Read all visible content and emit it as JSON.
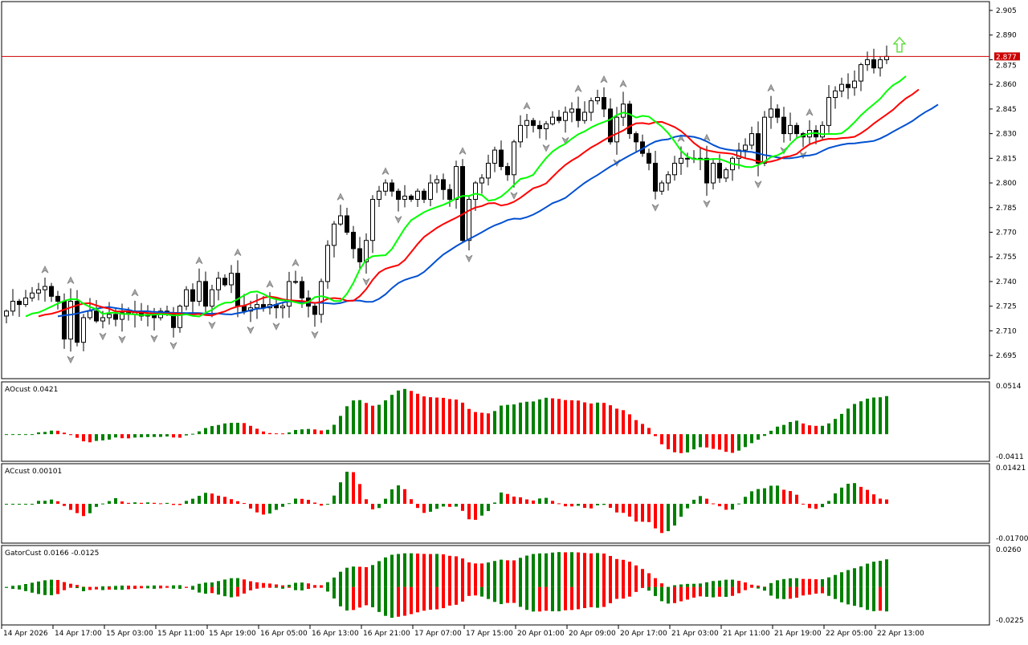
{
  "chart": {
    "bid_line_price": "2.877",
    "colors": {
      "bull_bar": "#008000",
      "bear_bar": "#ff0000",
      "lips": "#00ff00",
      "teeth": "#ff0000",
      "jaw": "#0050d0",
      "bid_line": "#cc0000",
      "buy_arrow": "#66dd44"
    },
    "price_ticks": [
      "2.905",
      "2.890",
      "2.875",
      "2.860",
      "2.845",
      "2.830",
      "2.815",
      "2.800",
      "2.785",
      "2.770",
      "2.755",
      "2.740",
      "2.725",
      "2.710",
      "2.695"
    ],
    "time_labels": [
      "14 Apr 2026",
      "14 Apr 17:00",
      "15 Apr 03:00",
      "15 Apr 11:00",
      "15 Apr 19:00",
      "16 Apr 05:00",
      "16 Apr 13:00",
      "16 Apr 21:00",
      "17 Apr 07:00",
      "17 Apr 15:00",
      "20 Apr 01:00",
      "20 Apr 09:00",
      "20 Apr 17:00",
      "21 Apr 03:00",
      "21 Apr 11:00",
      "21 Apr 19:00",
      "22 Apr 05:00",
      "22 Apr 13:00"
    ]
  },
  "indicators": {
    "ao": {
      "label": "AOcust 0.0421",
      "max": "0.0514",
      "min": "-0.0411"
    },
    "ac": {
      "label": "ACcust 0.00101",
      "max": "0.01421",
      "min": "-0.01700"
    },
    "gator": {
      "label": "GatorCust 0.0166 -0.0125",
      "max": "0.0260",
      "min": "-0.0225"
    }
  },
  "chart_data": {
    "type": "candlestick",
    "closes": [
      2.722,
      2.728,
      2.726,
      2.73,
      2.733,
      2.735,
      2.737,
      2.731,
      2.728,
      2.705,
      2.728,
      2.703,
      2.718,
      2.722,
      2.716,
      2.718,
      2.72,
      2.717,
      2.721,
      2.72,
      2.722,
      2.719,
      2.72,
      2.718,
      2.722,
      2.72,
      2.712,
      2.725,
      2.735,
      2.728,
      2.74,
      2.725,
      2.735,
      2.742,
      2.738,
      2.745,
      2.725,
      2.722,
      2.724,
      2.726,
      2.724,
      2.726,
      2.724,
      2.725,
      2.74,
      2.74,
      2.73,
      2.725,
      2.72,
      2.74,
      2.762,
      2.775,
      2.78,
      2.77,
      2.76,
      2.752,
      2.765,
      2.79,
      2.795,
      2.8,
      2.795,
      2.79,
      2.792,
      2.79,
      2.795,
      2.79,
      2.8,
      2.802,
      2.796,
      2.79,
      2.81,
      2.765,
      2.79,
      2.8,
      2.803,
      2.812,
      2.82,
      2.81,
      2.805,
      2.825,
      2.835,
      2.838,
      2.835,
      2.833,
      2.836,
      2.84,
      2.838,
      2.843,
      2.845,
      2.838,
      2.843,
      2.85,
      2.852,
      2.845,
      2.825,
      2.84,
      2.848,
      2.83,
      2.825,
      2.818,
      2.812,
      2.795,
      2.8,
      2.805,
      2.812,
      2.815,
      2.815,
      2.815,
      2.815,
      2.8,
      2.812,
      2.803,
      2.808,
      2.815,
      2.82,
      2.823,
      2.83,
      2.812,
      2.84,
      2.845,
      2.84,
      2.83,
      2.835,
      2.83,
      2.828,
      2.832,
      2.828,
      2.835,
      2.852,
      2.856,
      2.86,
      2.858,
      2.862,
      2.872,
      2.875,
      2.87,
      2.875,
      2.877
    ],
    "ylim": [
      2.688,
      2.91
    ]
  }
}
